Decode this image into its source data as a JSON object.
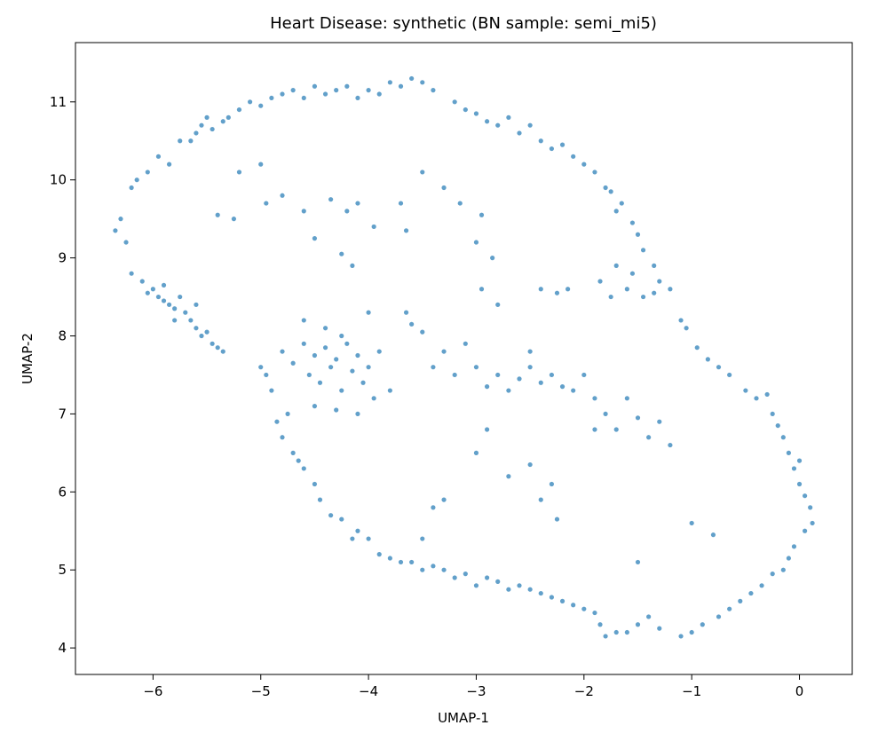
{
  "chart_data": {
    "type": "scatter",
    "title": "Heart Disease: synthetic (BN sample: semi_mi5)",
    "xlabel": "UMAP-1",
    "ylabel": "UMAP-2",
    "color": "#1f77b4",
    "xlim": [
      -6.72,
      0.49
    ],
    "ylim": [
      3.66,
      11.76
    ],
    "xticks": [
      {
        "value": -6,
        "label": "−6"
      },
      {
        "value": -5,
        "label": "−5"
      },
      {
        "value": -4,
        "label": "−4"
      },
      {
        "value": -3,
        "label": "−3"
      },
      {
        "value": -2,
        "label": "−2"
      },
      {
        "value": -1,
        "label": "−1"
      },
      0
    ],
    "yticks": [
      4,
      5,
      6,
      7,
      8,
      9,
      10,
      11
    ],
    "x": [
      -6.35,
      -6.3,
      -6.25,
      -6.2,
      -6.15,
      -6.05,
      -5.95,
      -5.85,
      -5.75,
      -5.65,
      -5.6,
      -5.55,
      -5.5,
      -5.45,
      -5.35,
      -5.3,
      -5.2,
      -5.1,
      -5.0,
      -4.9,
      -4.8,
      -4.7,
      -4.6,
      -4.5,
      -4.4,
      -4.3,
      -4.2,
      -4.1,
      -4.0,
      -3.9,
      -3.8,
      -3.7,
      -3.6,
      -3.5,
      -3.4,
      -3.2,
      -3.1,
      -3.0,
      -2.9,
      -2.8,
      -2.7,
      -2.6,
      -2.5,
      -2.4,
      -2.3,
      -2.2,
      -2.1,
      -2.0,
      -1.9,
      -1.8,
      -1.75,
      -1.7,
      -1.65,
      -1.55,
      -1.5,
      -1.45,
      -1.35,
      -1.3,
      -1.2,
      -1.1,
      -1.05,
      -0.95,
      -0.85,
      -0.75,
      -0.65,
      -0.5,
      -0.4,
      -0.3,
      -0.25,
      -0.2,
      -0.15,
      -0.1,
      -0.05,
      0.0,
      0.0,
      0.05,
      0.1,
      0.12,
      0.05,
      -0.05,
      -0.1,
      -0.15,
      -0.25,
      -0.35,
      -0.45,
      -0.55,
      -0.65,
      -0.75,
      -0.9,
      -1.0,
      -1.1,
      -1.3,
      -1.4,
      -1.5,
      -1.6,
      -1.7,
      -1.8,
      -1.85,
      -1.9,
      -2.0,
      -2.1,
      -2.2,
      -2.3,
      -2.4,
      -2.5,
      -2.6,
      -2.7,
      -2.8,
      -2.9,
      -3.0,
      -3.1,
      -3.2,
      -3.3,
      -3.4,
      -3.5,
      -3.6,
      -3.7,
      -3.8,
      -3.9,
      -4.0,
      -4.1,
      -4.15,
      -4.25,
      -4.35,
      -4.45,
      -4.5,
      -4.6,
      -4.65,
      -4.7,
      -4.8,
      -4.85,
      -4.75,
      -4.9,
      -4.95,
      -5.0,
      -6.2,
      -6.1,
      -6.0,
      -5.95,
      -5.9,
      -5.85,
      -5.8,
      -5.75,
      -5.7,
      -5.65,
      -5.6,
      -5.55,
      -5.5,
      -5.45,
      -5.4,
      -5.8,
      -5.9,
      -6.05,
      -5.6,
      -5.35,
      -4.8,
      -4.7,
      -4.6,
      -4.55,
      -4.5,
      -4.45,
      -4.4,
      -4.35,
      -4.3,
      -4.25,
      -4.2,
      -4.15,
      -4.1,
      -4.05,
      -4.0,
      -3.95,
      -4.3,
      -4.5,
      -4.1,
      -4.4,
      -4.6,
      -4.25,
      -3.9,
      -4.0,
      -3.8,
      -5.4,
      -5.25,
      -5.2,
      -5.0,
      -4.95,
      -4.8,
      -4.6,
      -4.5,
      -4.35,
      -4.2,
      -4.1,
      -4.25,
      -4.15,
      -3.95,
      -3.7,
      -3.65,
      -3.5,
      -3.3,
      -3.15,
      -2.95,
      -3.4,
      -3.3,
      -3.2,
      -3.1,
      -3.0,
      -2.9,
      -2.8,
      -2.7,
      -2.6,
      -2.5,
      -2.4,
      -2.3,
      -2.2,
      -2.1,
      -1.9,
      -1.8,
      -1.7,
      -1.6,
      -1.5,
      -1.4,
      -1.3,
      -1.2,
      -1.9,
      -2.0,
      -2.5,
      -1.7,
      -1.6,
      -1.55,
      -1.45,
      -1.35,
      -1.75,
      -1.85,
      -2.15,
      -2.25,
      -2.4,
      -3.0,
      -2.95,
      -2.85,
      -2.8,
      -3.65,
      -3.6,
      -3.5,
      -2.9,
      -3.0,
      -3.3,
      -3.4,
      -3.5,
      -2.7,
      -2.5,
      -2.4,
      -2.3,
      -2.25,
      -1.0,
      -0.8,
      -1.5
    ],
    "values": [
      9.35,
      9.5,
      9.2,
      9.9,
      10.0,
      10.1,
      10.3,
      10.2,
      10.5,
      10.5,
      10.6,
      10.7,
      10.8,
      10.65,
      10.75,
      10.8,
      10.9,
      11.0,
      10.95,
      11.05,
      11.1,
      11.15,
      11.05,
      11.2,
      11.1,
      11.15,
      11.2,
      11.05,
      11.15,
      11.1,
      11.25,
      11.2,
      11.3,
      11.25,
      11.15,
      11.0,
      10.9,
      10.85,
      10.75,
      10.7,
      10.8,
      10.6,
      10.7,
      10.5,
      10.4,
      10.45,
      10.3,
      10.2,
      10.1,
      9.9,
      9.85,
      9.6,
      9.7,
      9.45,
      9.3,
      9.1,
      8.9,
      8.7,
      8.6,
      8.2,
      8.1,
      7.85,
      7.7,
      7.6,
      7.5,
      7.3,
      7.2,
      7.25,
      7.0,
      6.85,
      6.7,
      6.5,
      6.3,
      6.4,
      6.1,
      5.95,
      5.8,
      5.6,
      5.5,
      5.3,
      5.15,
      5.0,
      4.95,
      4.8,
      4.7,
      4.6,
      4.5,
      4.4,
      4.3,
      4.2,
      4.15,
      4.25,
      4.4,
      4.3,
      4.2,
      4.2,
      4.15,
      4.3,
      4.45,
      4.5,
      4.55,
      4.6,
      4.65,
      4.7,
      4.75,
      4.8,
      4.75,
      4.85,
      4.9,
      4.8,
      4.95,
      4.9,
      5.0,
      5.05,
      5.0,
      5.1,
      5.1,
      5.15,
      5.2,
      5.4,
      5.5,
      5.4,
      5.65,
      5.7,
      5.9,
      6.1,
      6.3,
      6.4,
      6.5,
      6.7,
      6.9,
      7.0,
      7.3,
      7.5,
      7.6,
      8.8,
      8.7,
      8.6,
      8.5,
      8.65,
      8.4,
      8.35,
      8.5,
      8.3,
      8.2,
      8.1,
      8.0,
      8.05,
      7.9,
      7.85,
      8.2,
      8.45,
      8.55,
      8.4,
      7.8,
      7.8,
      7.65,
      7.9,
      7.5,
      7.75,
      7.4,
      7.85,
      7.6,
      7.7,
      7.3,
      7.9,
      7.55,
      7.75,
      7.4,
      7.6,
      7.2,
      7.05,
      7.1,
      7.0,
      8.1,
      8.2,
      8.0,
      7.8,
      8.3,
      7.3,
      9.55,
      9.5,
      10.1,
      10.2,
      9.7,
      9.8,
      9.6,
      9.25,
      9.75,
      9.6,
      9.7,
      9.05,
      8.9,
      9.4,
      9.7,
      9.35,
      10.1,
      9.9,
      9.7,
      9.55,
      7.6,
      7.8,
      7.5,
      7.9,
      7.6,
      7.35,
      7.5,
      7.3,
      7.45,
      7.6,
      7.4,
      7.5,
      7.35,
      7.3,
      7.2,
      7.0,
      6.8,
      7.2,
      6.95,
      6.7,
      6.9,
      6.6,
      6.8,
      7.5,
      7.8,
      8.9,
      8.6,
      8.8,
      8.5,
      8.55,
      8.5,
      8.7,
      8.6,
      8.55,
      8.6,
      9.2,
      8.6,
      9.0,
      8.4,
      8.3,
      8.15,
      8.05,
      6.8,
      6.5,
      5.9,
      5.8,
      5.4,
      6.2,
      6.35,
      5.9,
      6.1,
      5.65,
      5.6,
      5.45,
      5.1
    ]
  }
}
